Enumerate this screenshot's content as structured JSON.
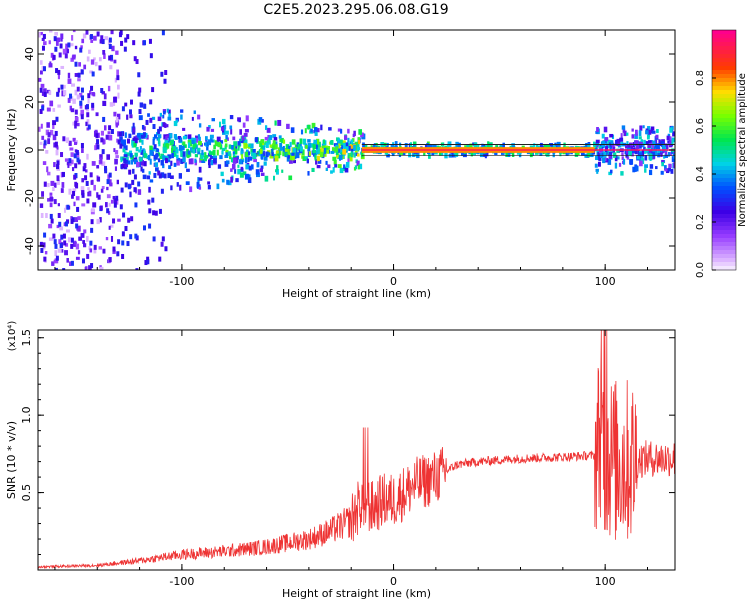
{
  "title": "C2E5.2023.295.06.08.G19",
  "chart_data": [
    {
      "type": "heatmap",
      "xlabel": "Height of straight line (km)",
      "ylabel": "Frequency (Hz)",
      "xlim": [
        -168,
        133
      ],
      "ylim": [
        -50,
        50
      ],
      "xticks": [
        -100,
        0,
        100
      ],
      "yticks": [
        -40,
        -20,
        0,
        20,
        40
      ],
      "colorbar": {
        "label": "Normalized spectral amplitude",
        "range": [
          0,
          1
        ],
        "ticks": [
          "0.0",
          "0.2",
          "0.4",
          "0.6",
          "0.8"
        ],
        "colormap": "rainbow (white-purple-blue-cyan-green-yellow-red-pink)"
      },
      "description_values": {
        "dominant_line_frequency_hz": 0,
        "noise_spread_region_km": [
          -168,
          -15
        ],
        "clean_band_km": [
          -15,
          95
        ],
        "secondary_spread_km": [
          95,
          133
        ]
      }
    },
    {
      "type": "line",
      "xlabel": "Height of straight line (km)",
      "ylabel": "SNR (10 * v/v)",
      "y_multiplier": "(x10⁴)",
      "xlim": [
        -168,
        133
      ],
      "ylim": [
        0,
        1.55
      ],
      "xticks": [
        -100,
        0,
        100
      ],
      "yticks": [
        "0.5",
        "1.0",
        "1.5"
      ],
      "series_color": "#ee3333",
      "series": [
        {
          "x": [
            -168,
            -140,
            -120,
            -100,
            -80,
            -60,
            -40,
            -30,
            -20,
            -15,
            -10,
            -5,
            0,
            5,
            10,
            20,
            30,
            40,
            60,
            80,
            95,
            98,
            100,
            105,
            110,
            120,
            133
          ],
          "y": [
            0.02,
            0.03,
            0.06,
            0.1,
            0.12,
            0.15,
            0.2,
            0.25,
            0.32,
            0.45,
            0.4,
            0.45,
            0.45,
            0.5,
            0.55,
            0.6,
            0.68,
            0.7,
            0.72,
            0.73,
            0.74,
            0.9,
            0.75,
            0.7,
            0.7,
            0.72,
            0.72
          ]
        }
      ]
    }
  ]
}
